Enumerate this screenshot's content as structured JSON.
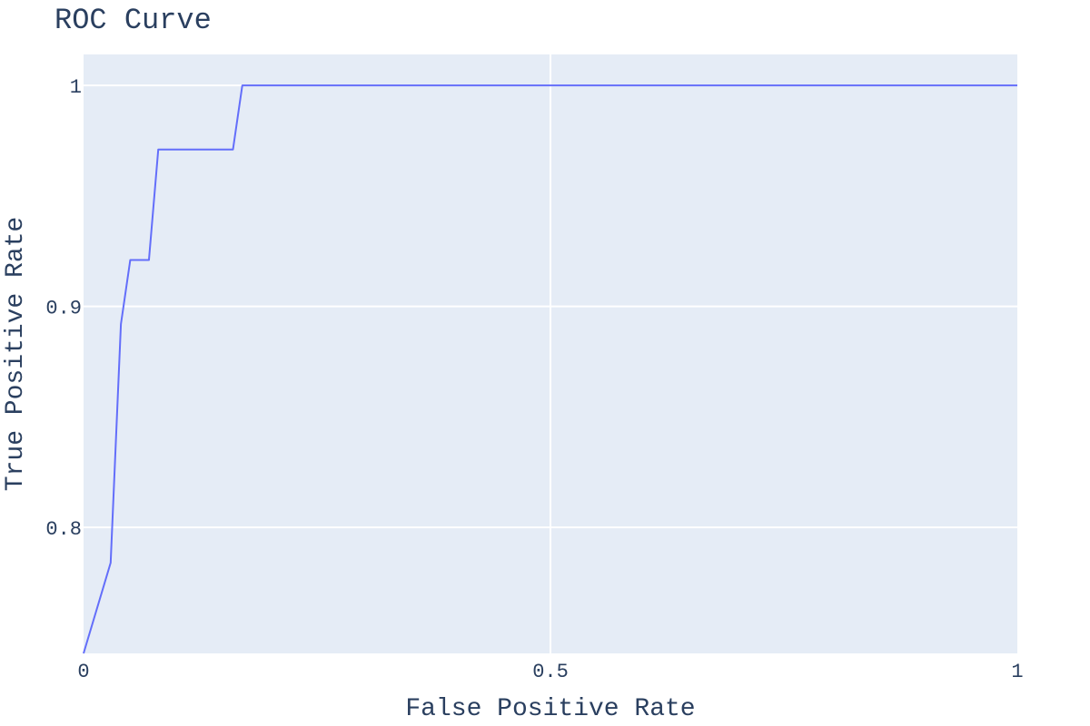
{
  "chart_data": {
    "type": "line",
    "title": "ROC Curve",
    "xlabel": "False Positive Rate",
    "ylabel": "True Positive Rate",
    "xlim": [
      0,
      1
    ],
    "ylim": [
      0.743,
      1.014
    ],
    "x_ticks": [
      0,
      0.5,
      1
    ],
    "x_tick_labels": [
      "0",
      "0.5",
      "1"
    ],
    "y_ticks": [
      0.8,
      0.9,
      1
    ],
    "y_tick_labels": [
      "0.8",
      "0.9",
      "1"
    ],
    "grid": true,
    "legend": "none",
    "series": [
      {
        "color": "#636efa",
        "x": [
          0,
          0.029,
          0.04,
          0.05,
          0.07,
          0.08,
          0.16,
          0.17,
          1
        ],
        "y": [
          0.743,
          0.784,
          0.892,
          0.921,
          0.921,
          0.971,
          0.971,
          1,
          1
        ]
      }
    ]
  },
  "colors": {
    "plot_background": "#e5ecf6",
    "grid": "#ffffff",
    "text": "#2a3f5f",
    "line": "#636efa"
  }
}
